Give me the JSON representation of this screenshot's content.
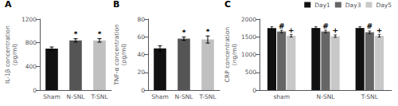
{
  "chart_data": [
    {
      "type": "bar",
      "title": "A",
      "ylabel": "IL-1β concentration\n(pg/ml)",
      "categories": [
        "Sham",
        "N-SNL",
        "T-SNL"
      ],
      "values": [
        700,
        840,
        840
      ],
      "errors": [
        28,
        28,
        30
      ],
      "colors": [
        "#111111",
        "#555555",
        "#c0c0c0"
      ],
      "ylim": [
        0,
        1200
      ],
      "yticks": [
        0,
        400,
        800,
        1200
      ],
      "grid": false,
      "annotations": [
        {
          "category": "N-SNL",
          "text": "*"
        },
        {
          "category": "T-SNL",
          "text": "*"
        }
      ]
    },
    {
      "type": "bar",
      "title": "B",
      "ylabel": "TNF-α concentration\n(pg/ml)",
      "categories": [
        "Sham",
        "N-SNL",
        "T-SNL"
      ],
      "values": [
        47,
        58,
        57
      ],
      "errors": [
        3,
        2,
        4
      ],
      "colors": [
        "#111111",
        "#555555",
        "#c0c0c0"
      ],
      "ylim": [
        0,
        80
      ],
      "yticks": [
        0,
        20,
        40,
        60,
        80
      ],
      "grid": false,
      "annotations": [
        {
          "category": "N-SNL",
          "text": "*"
        },
        {
          "category": "T-SNL",
          "text": "*"
        }
      ]
    },
    {
      "type": "bar",
      "title": "C",
      "ylabel": "CRP concentration\n(ng/ml)",
      "categories": [
        "sham",
        "N-SNL",
        "T-SNL"
      ],
      "series": [
        {
          "name": "Day1",
          "color": "#111111",
          "values": [
            1750,
            1750,
            1750
          ],
          "errors": [
            35,
            35,
            35
          ]
        },
        {
          "name": "Day3",
          "color": "#666666",
          "values": [
            1650,
            1650,
            1630
          ],
          "errors": [
            35,
            35,
            35
          ]
        },
        {
          "name": "Day5",
          "color": "#c8c8c8",
          "values": [
            1530,
            1520,
            1530
          ],
          "errors": [
            35,
            35,
            35
          ]
        }
      ],
      "ylim": [
        0,
        2000
      ],
      "yticks": [
        0,
        500,
        1000,
        1500,
        2000
      ],
      "grid": false,
      "legend": "upper right",
      "annotations": [
        {
          "category": "sham",
          "series": "Day3",
          "text": "#"
        },
        {
          "category": "sham",
          "series": "Day5",
          "text": "+"
        },
        {
          "category": "N-SNL",
          "series": "Day3",
          "text": "#"
        },
        {
          "category": "N-SNL",
          "series": "Day5",
          "text": "+"
        },
        {
          "category": "T-SNL",
          "series": "Day3",
          "text": "#"
        },
        {
          "category": "T-SNL",
          "series": "Day5",
          "text": "+"
        }
      ]
    }
  ]
}
